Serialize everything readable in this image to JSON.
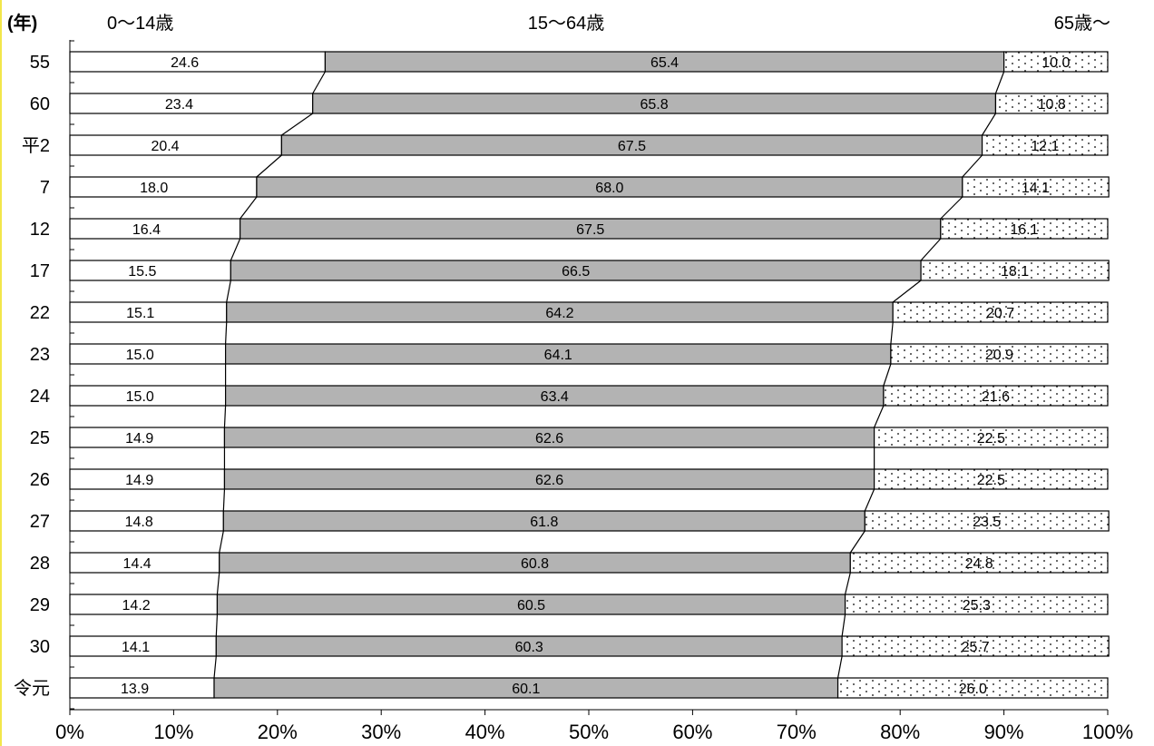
{
  "chart_data": {
    "type": "bar",
    "stacked": true,
    "orientation": "horizontal",
    "percent": true,
    "unit_label": "(年)",
    "categories": [
      "55",
      "60",
      "平2",
      "7",
      "12",
      "17",
      "22",
      "23",
      "24",
      "25",
      "26",
      "27",
      "28",
      "29",
      "30",
      "令元"
    ],
    "series": [
      {
        "name": "0～14歳",
        "color": "#ffffff",
        "pattern": "none",
        "values": [
          24.6,
          23.4,
          20.4,
          18.0,
          16.4,
          15.5,
          15.1,
          15.0,
          15.0,
          14.9,
          14.9,
          14.8,
          14.4,
          14.2,
          14.1,
          13.9
        ],
        "labels": [
          "24.6",
          "23.4",
          "20.4",
          "18.0",
          "16.4",
          "15.5",
          "15.1",
          "15.0",
          "15.0",
          "14.9",
          "14.9",
          "14.8",
          "14.4",
          "14.2",
          "14.1",
          "13.9"
        ]
      },
      {
        "name": "15～64歳",
        "color": "#b3b3b3",
        "pattern": "none",
        "values": [
          65.4,
          65.8,
          67.5,
          68.0,
          67.5,
          66.5,
          64.2,
          64.1,
          63.4,
          62.6,
          62.6,
          61.8,
          60.8,
          60.5,
          60.3,
          60.1
        ],
        "labels": [
          "65.4",
          "65.8",
          "67.5",
          "68.0",
          "67.5",
          "66.5",
          "64.2",
          "64.1",
          "63.4",
          "62.6",
          "62.6",
          "61.8",
          "60.8",
          "60.5",
          "60.3",
          "60.1"
        ]
      },
      {
        "name": "65歳～",
        "color": "#ffffff",
        "pattern": "dots",
        "values": [
          10.0,
          10.8,
          12.1,
          14.1,
          16.1,
          18.1,
          20.7,
          20.9,
          21.6,
          22.5,
          22.5,
          23.5,
          24.8,
          25.3,
          25.7,
          26.0
        ],
        "labels": [
          "10.0",
          "10.8",
          "12.1",
          "14.1",
          "16.1",
          "18.1",
          "20.7",
          "20.9",
          "21.6",
          "22.5",
          "22.5",
          "23.5",
          "24.8",
          "25.3",
          "25.7",
          "26.0"
        ]
      }
    ],
    "xlim": [
      0,
      100
    ],
    "xticks": [
      "0%",
      "10%",
      "20%",
      "30%",
      "40%",
      "50%",
      "60%",
      "70%",
      "80%",
      "90%",
      "100%"
    ],
    "connector_lines": true,
    "legend": "top",
    "grid": false
  }
}
